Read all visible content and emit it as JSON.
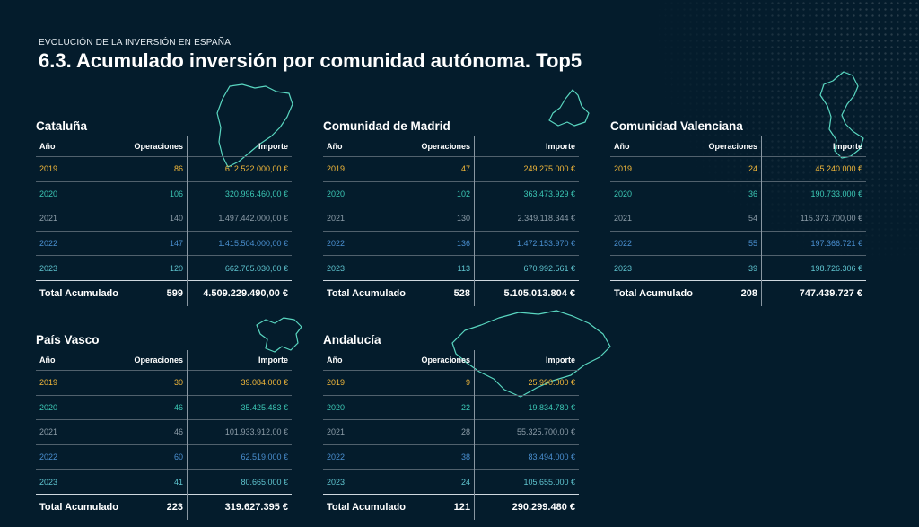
{
  "header": {
    "kicker": "EVOLUCIÓN DE LA INVERSIÓN EN ESPAÑA",
    "title": "6.3. Acumulado inversión por comunidad autónoma. Top5"
  },
  "columns": {
    "year": "Año",
    "operations": "Operaciones",
    "amount": "Importe"
  },
  "colors": {
    "background": "#041c2c",
    "y2019": "#f4b93a",
    "y2020": "#3cc7b5",
    "y2021": "#8c9ca8",
    "y2022": "#4a8fd0",
    "y2023": "#5fc4cf",
    "map_outline": "#5ee0c8"
  },
  "regions": [
    {
      "name": "Cataluña",
      "map_icon": "cataluna-map-icon",
      "rows": [
        {
          "year": "2019",
          "ops": "86",
          "amount": "612.522.000,00 €"
        },
        {
          "year": "2020",
          "ops": "106",
          "amount": "320.996.460,00 €"
        },
        {
          "year": "2021",
          "ops": "140",
          "amount": "1.497.442.000,00 €"
        },
        {
          "year": "2022",
          "ops": "147",
          "amount": "1.415.504.000,00 €"
        },
        {
          "year": "2023",
          "ops": "120",
          "amount": "662.765.030,00 €"
        }
      ],
      "total": {
        "label": "Total Acumulado",
        "ops": "599",
        "amount": "4.509.229.490,00 €"
      }
    },
    {
      "name": "Comunidad de Madrid",
      "map_icon": "madrid-map-icon",
      "rows": [
        {
          "year": "2019",
          "ops": "47",
          "amount": "249.275.000 €"
        },
        {
          "year": "2020",
          "ops": "102",
          "amount": "363.473.929 €"
        },
        {
          "year": "2021",
          "ops": "130",
          "amount": "2.349.118.344 €"
        },
        {
          "year": "2022",
          "ops": "136",
          "amount": "1.472.153.970 €"
        },
        {
          "year": "2023",
          "ops": "113",
          "amount": "670.992.561 €"
        }
      ],
      "total": {
        "label": "Total Acumulado",
        "ops": "528",
        "amount": "5.105.013.804 €"
      }
    },
    {
      "name": "Comunidad Valenciana",
      "map_icon": "valencia-map-icon",
      "rows": [
        {
          "year": "2019",
          "ops": "24",
          "amount": "45.240.000 €"
        },
        {
          "year": "2020",
          "ops": "36",
          "amount": "190.733.000 €"
        },
        {
          "year": "2021",
          "ops": "54",
          "amount": "115.373.700,00 €"
        },
        {
          "year": "2022",
          "ops": "55",
          "amount": "197.366.721 €"
        },
        {
          "year": "2023",
          "ops": "39",
          "amount": "198.726.306 €"
        }
      ],
      "total": {
        "label": "Total Acumulado",
        "ops": "208",
        "amount": "747.439.727 €"
      }
    },
    {
      "name": "País Vasco",
      "map_icon": "pais-vasco-map-icon",
      "rows": [
        {
          "year": "2019",
          "ops": "30",
          "amount": "39.084.000 €"
        },
        {
          "year": "2020",
          "ops": "46",
          "amount": "35.425.483 €"
        },
        {
          "year": "2021",
          "ops": "46",
          "amount": "101.933.912,00 €"
        },
        {
          "year": "2022",
          "ops": "60",
          "amount": "62.519.000 €"
        },
        {
          "year": "2023",
          "ops": "41",
          "amount": "80.665.000 €"
        }
      ],
      "total": {
        "label": "Total Acumulado",
        "ops": "223",
        "amount": "319.627.395 €"
      }
    },
    {
      "name": "Andalucía",
      "map_icon": "andalucia-map-icon",
      "rows": [
        {
          "year": "2019",
          "ops": "9",
          "amount": "25.990.000 €"
        },
        {
          "year": "2020",
          "ops": "22",
          "amount": "19.834.780 €"
        },
        {
          "year": "2021",
          "ops": "28",
          "amount": "55.325.700,00 €"
        },
        {
          "year": "2022",
          "ops": "38",
          "amount": "83.494.000 €"
        },
        {
          "year": "2023",
          "ops": "24",
          "amount": "105.655.000 €"
        }
      ],
      "total": {
        "label": "Total Acumulado",
        "ops": "121",
        "amount": "290.299.480 €"
      }
    }
  ]
}
